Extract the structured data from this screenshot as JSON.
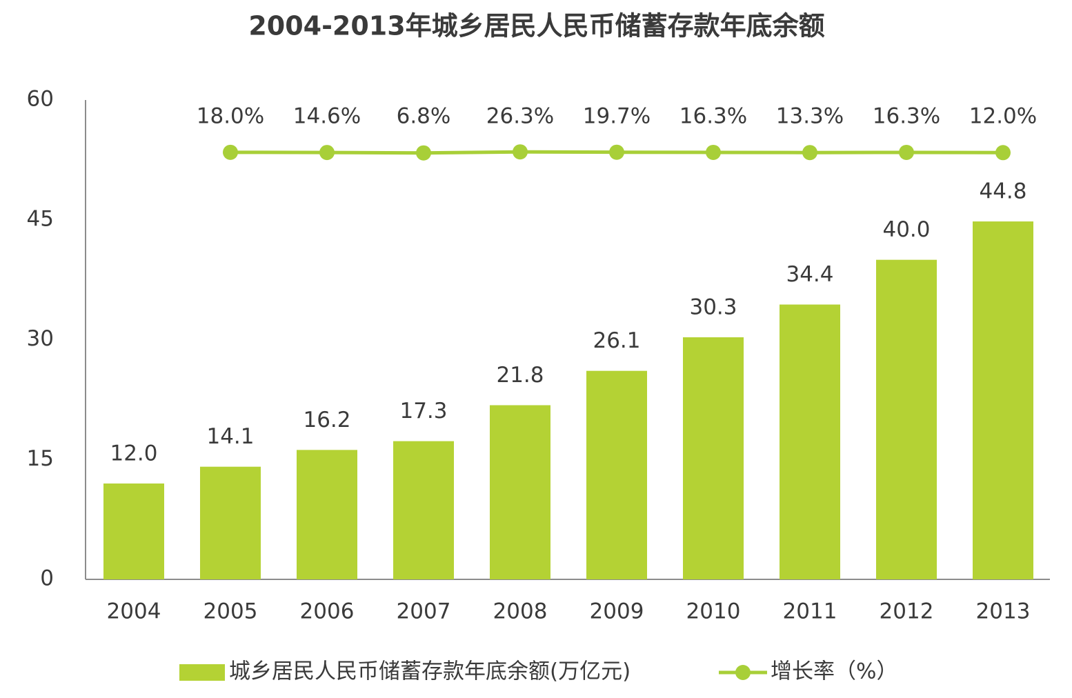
{
  "chart_data": {
    "type": "bar",
    "title": "2004-2013年城乡居民人民币储蓄存款年底余额",
    "categories": [
      "2004",
      "2005",
      "2006",
      "2007",
      "2008",
      "2009",
      "2010",
      "2011",
      "2012",
      "2013"
    ],
    "series": [
      {
        "name": "城乡居民人民币储蓄存款年底余额(万亿元)",
        "type": "bar",
        "color": "#b4d234",
        "values": [
          12.0,
          14.1,
          16.2,
          17.3,
          21.8,
          26.1,
          30.3,
          34.4,
          40.0,
          44.8
        ],
        "value_labels": [
          "12.0",
          "14.1",
          "16.2",
          "17.3",
          "21.8",
          "26.1",
          "30.3",
          "34.4",
          "40.0",
          "44.8"
        ]
      },
      {
        "name": "增长率（%）",
        "type": "line",
        "axis": "y2",
        "color": "#a8cf38",
        "values": [
          null,
          18.0,
          14.6,
          6.8,
          26.3,
          19.7,
          16.3,
          13.3,
          16.3,
          12.0
        ],
        "value_labels": [
          null,
          "18.0%",
          "14.6%",
          "6.8%",
          "26.3%",
          "19.7%",
          "16.3%",
          "13.3%",
          "16.3%",
          "12.0%"
        ]
      }
    ],
    "ylim": [
      0,
      60
    ],
    "yticks": [
      0,
      15,
      30,
      45,
      60
    ],
    "y2lim": [
      -8000,
      1000
    ],
    "grid": false,
    "legend": "bottom"
  }
}
